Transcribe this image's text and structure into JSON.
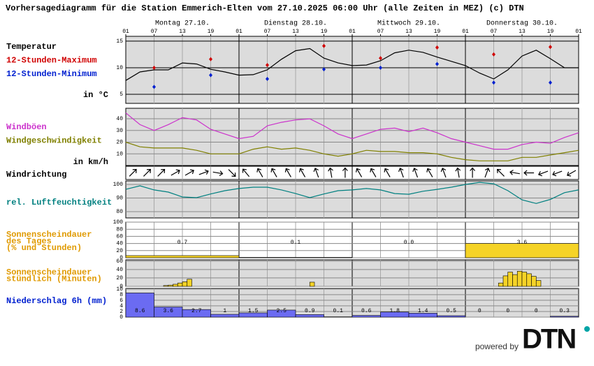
{
  "header": {
    "title": "Vorhersagediagramm für die Station Emmerich-Elten vom 27.10.2025 06:00 Uhr (alle Zeiten in MEZ)   (c) DTN",
    "powered_by": "powered by",
    "logo": "DTN"
  },
  "x_axis": {
    "days": [
      "Montag 27.10.",
      "Dienstag 28.10.",
      "Mittwoch 29.10.",
      "Donnerstag 30.10."
    ],
    "hour_labels": [
      "01",
      "07",
      "13",
      "19",
      "01",
      "07",
      "13",
      "19",
      "01",
      "07",
      "13",
      "19",
      "01",
      "07",
      "13",
      "19",
      "01"
    ]
  },
  "chart_data": [
    {
      "type": "line",
      "label": "Temperatur",
      "unit_label": "in °C",
      "ylim": [
        3.3,
        15.9
      ],
      "yticks": [
        5,
        10,
        15
      ],
      "x": [
        0,
        3,
        6,
        9,
        12,
        15,
        18,
        21,
        24,
        27,
        30,
        33,
        36,
        39,
        42,
        45,
        48,
        51,
        54,
        57,
        60,
        63,
        66,
        69,
        72,
        75,
        78,
        81,
        84,
        87,
        90,
        93,
        96
      ],
      "series": [
        {
          "color": "#000000",
          "values": [
            7.6,
            9.2,
            9.6,
            9.6,
            10.9,
            10.7,
            9.7,
            9.2,
            8.6,
            8.7,
            9.6,
            11.6,
            13.2,
            13.6,
            11.8,
            10.9,
            10.4,
            10.5,
            11.3,
            12.8,
            13.3,
            12.9,
            12,
            11.2,
            10.4,
            9,
            7.9,
            9.6,
            12.2,
            13.3,
            11.7,
            10,
            10
          ]
        },
        {
          "name": "12-Stunden-Maximum",
          "color": "#d00000",
          "marker": "diamond",
          "x": [
            6,
            18,
            30,
            42,
            54,
            66,
            78,
            90
          ],
          "values": [
            10,
            11.6,
            10.5,
            14.1,
            11.8,
            13.8,
            12.5,
            13.9
          ]
        },
        {
          "name": "12-Stunden-Minimum",
          "color": "#0020d0",
          "marker": "diamond",
          "x": [
            6,
            18,
            30,
            42,
            54,
            66,
            78,
            90
          ],
          "values": [
            6.4,
            8.6,
            7.9,
            9.7,
            10,
            10.7,
            7.2,
            7.2
          ]
        }
      ]
    },
    {
      "type": "line",
      "unit_label": "in km/h",
      "ylim": [
        0,
        49
      ],
      "yticks": [
        10,
        20,
        30,
        40
      ],
      "x": [
        0,
        3,
        6,
        9,
        12,
        15,
        18,
        21,
        24,
        27,
        30,
        33,
        36,
        39,
        42,
        45,
        48,
        51,
        54,
        57,
        60,
        63,
        66,
        69,
        72,
        75,
        78,
        81,
        84,
        87,
        90,
        93,
        96
      ],
      "series": [
        {
          "name": "Windböen",
          "color": "#cc33cc",
          "values": [
            45,
            35,
            30,
            35,
            41,
            39,
            31,
            27,
            23,
            25,
            34,
            37,
            39,
            40,
            34,
            27,
            23,
            27,
            31,
            32,
            29,
            32,
            28,
            23,
            20,
            17,
            14,
            14,
            18,
            20,
            19,
            24,
            28
          ]
        },
        {
          "name": "Windgeschwindigkeit",
          "color": "#808000",
          "values": [
            20,
            16,
            15,
            15,
            15,
            13,
            10,
            10,
            10,
            14,
            16,
            14,
            15,
            13,
            10,
            8,
            10,
            13,
            12,
            12,
            11,
            11,
            10,
            7,
            5,
            4,
            4,
            4,
            7,
            7,
            9,
            11,
            13
          ]
        }
      ]
    },
    {
      "type": "arrows",
      "label": "Windrichtung",
      "x": [
        1.5,
        4.5,
        7.5,
        10.5,
        13.5,
        16.5,
        19.5,
        22.5,
        25.5,
        28.5,
        31.5,
        34.5,
        37.5,
        40.5,
        43.5,
        46.5,
        49.5,
        52.5,
        55.5,
        58.5,
        61.5,
        64.5,
        67.5,
        70.5,
        73.5,
        76.5,
        79.5,
        82.5,
        85.5,
        88.5,
        91.5,
        94.5
      ],
      "values": [
        45,
        45,
        45,
        60,
        60,
        70,
        100,
        135,
        320,
        330,
        330,
        330,
        330,
        340,
        350,
        0,
        330,
        330,
        330,
        340,
        340,
        330,
        340,
        350,
        0,
        20,
        315,
        280,
        270,
        250,
        250,
        240
      ]
    },
    {
      "type": "line",
      "label": "rel. Luftfeuchtigkeit",
      "label_color": "#008080",
      "ylim": [
        75.4,
        102.6
      ],
      "yticks": [
        80,
        90,
        100
      ],
      "x": [
        0,
        3,
        6,
        9,
        12,
        15,
        18,
        21,
        24,
        27,
        30,
        33,
        36,
        39,
        42,
        45,
        48,
        51,
        54,
        57,
        60,
        63,
        66,
        69,
        72,
        75,
        78,
        81,
        84,
        87,
        90,
        93,
        96
      ],
      "series": [
        {
          "color": "#008080",
          "values": [
            96.4,
            99,
            96,
            94.4,
            90.8,
            90.3,
            93,
            95.4,
            97,
            98,
            98,
            96,
            93.3,
            90.3,
            93,
            95.4,
            96,
            97,
            96,
            93.3,
            92.8,
            95,
            96.4,
            98,
            100,
            101.5,
            100.5,
            95.4,
            88.7,
            86,
            89,
            94,
            96
          ]
        }
      ]
    },
    {
      "type": "bar",
      "label_lines": [
        "Sonnenscheindauer",
        "des Tages",
        "(% und Stunden)"
      ],
      "label_color": "#e09a00",
      "ylim": [
        0,
        100
      ],
      "yticks": [
        0,
        20,
        40,
        60,
        80,
        100
      ],
      "values": [
        6,
        1,
        0,
        40
      ],
      "hours": [
        0.7,
        0.1,
        0,
        3.6
      ],
      "hours_labels": [
        "0.7",
        "0.1",
        "0.0",
        "3.6"
      ]
    },
    {
      "type": "bar",
      "label_lines": [
        "Sonnenscheindauer",
        "stündlich (Minuten)"
      ],
      "label_color": "#e09a00",
      "ylim": [
        0,
        63
      ],
      "yticks": [
        0,
        20,
        40,
        60
      ],
      "x": [
        8,
        9,
        10,
        11,
        12,
        13,
        39,
        79,
        80,
        81,
        82,
        83,
        84,
        85,
        86,
        87
      ],
      "values": [
        2,
        3,
        5,
        8,
        11,
        17,
        10,
        8,
        25,
        34,
        28,
        36,
        34,
        30,
        24,
        14
      ]
    },
    {
      "type": "bar",
      "label": "Niederschlag 6h (mm)",
      "label_color": "#0020d0",
      "ylim": [
        0,
        10.2
      ],
      "yticks": [
        0,
        2,
        4,
        6,
        8,
        10
      ],
      "values": [
        8.6,
        3.6,
        2.7,
        1,
        1.5,
        2.5,
        0.9,
        0.1,
        0.6,
        1.8,
        1.4,
        0.5,
        0,
        0,
        0,
        0.3
      ]
    }
  ]
}
